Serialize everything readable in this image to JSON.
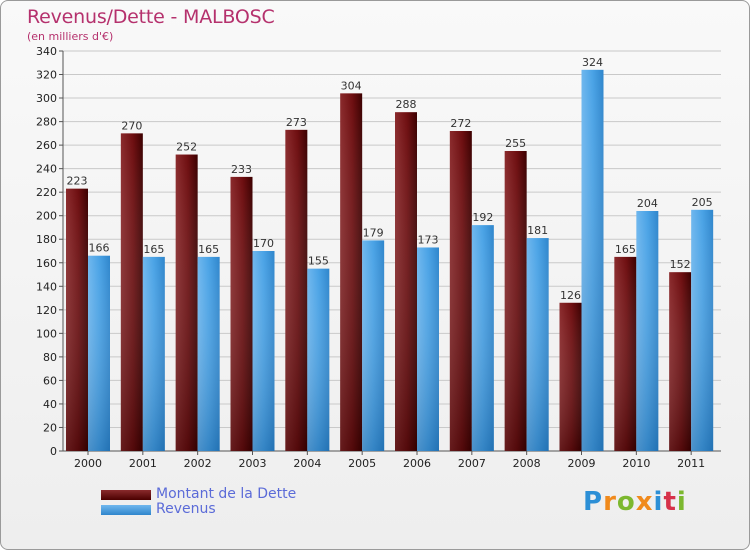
{
  "chart_data": {
    "type": "bar",
    "title": "Revenus/Dette - MALBOSC",
    "subtitle": "(en milliers d'€)",
    "xlabel": "",
    "ylabel": "",
    "ylim": [
      0,
      340
    ],
    "ytick_step": 20,
    "grid": true,
    "legend_position": "bottom-left",
    "categories": [
      "2000",
      "2001",
      "2002",
      "2003",
      "2004",
      "2005",
      "2006",
      "2007",
      "2008",
      "2009",
      "2010",
      "2011"
    ],
    "series": [
      {
        "name": "Montant de la Dette",
        "color": "#6e0e10",
        "values": [
          223,
          270,
          252,
          233,
          273,
          304,
          288,
          272,
          255,
          126,
          165,
          152
        ]
      },
      {
        "name": "Revenus",
        "color": "#4aa3e6",
        "values": [
          166,
          165,
          165,
          170,
          155,
          179,
          173,
          192,
          181,
          324,
          204,
          205
        ]
      }
    ]
  },
  "brand": {
    "text": "Proxiti",
    "letters": [
      {
        "ch": "P",
        "color": "#2c8fd6"
      },
      {
        "ch": "r",
        "color": "#f08a1c"
      },
      {
        "ch": "o",
        "color": "#7cb82f"
      },
      {
        "ch": "x",
        "color": "#f08a1c"
      },
      {
        "ch": "i",
        "color": "#2c8fd6"
      },
      {
        "ch": "t",
        "color": "#d6324a"
      },
      {
        "ch": "i",
        "color": "#7cb82f"
      }
    ]
  }
}
